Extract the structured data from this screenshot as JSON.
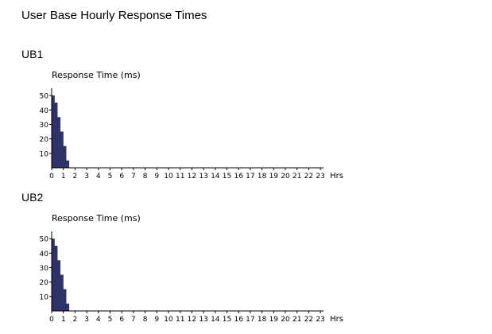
{
  "page": {
    "title": "User Base Hourly Response Times"
  },
  "chart_data": [
    {
      "type": "area",
      "section_label": "UB1",
      "ylabel": "Response Time (ms)",
      "xlabel": "Hrs",
      "y_ticks": [
        10,
        20,
        30,
        40,
        50
      ],
      "y_tick_labels": [
        "10",
        "20",
        "30",
        "40",
        "50"
      ],
      "ylim": [
        0,
        55
      ],
      "x_tick_labels": [
        "0",
        "1",
        "2",
        "3",
        "4",
        "5",
        "6",
        "7",
        "8",
        "9",
        "10",
        "11",
        "12",
        "13",
        "14",
        "15",
        "16",
        "17",
        "18",
        "19",
        "20",
        "21",
        "22",
        "23"
      ],
      "xlim": [
        0,
        23
      ],
      "bar_color": "#2e3266",
      "x": [
        0.0,
        0.25,
        0.5,
        0.75,
        1.0,
        1.25
      ],
      "values": [
        50,
        45,
        35,
        25,
        15,
        5
      ]
    },
    {
      "type": "area",
      "section_label": "UB2",
      "ylabel": "Response Time (ms)",
      "xlabel": "Hrs",
      "y_ticks": [
        10,
        20,
        30,
        40,
        50
      ],
      "y_tick_labels": [
        "10",
        "20",
        "30",
        "40",
        "50"
      ],
      "ylim": [
        0,
        55
      ],
      "x_tick_labels": [
        "0",
        "1",
        "2",
        "3",
        "4",
        "5",
        "6",
        "7",
        "8",
        "9",
        "10",
        "11",
        "12",
        "13",
        "14",
        "15",
        "16",
        "17",
        "18",
        "19",
        "20",
        "21",
        "22",
        "23"
      ],
      "xlim": [
        0,
        23
      ],
      "bar_color": "#2e3266",
      "x": [
        0.0,
        0.25,
        0.5,
        0.75,
        1.0,
        1.25
      ],
      "values": [
        50,
        45,
        35,
        25,
        15,
        5
      ]
    }
  ]
}
